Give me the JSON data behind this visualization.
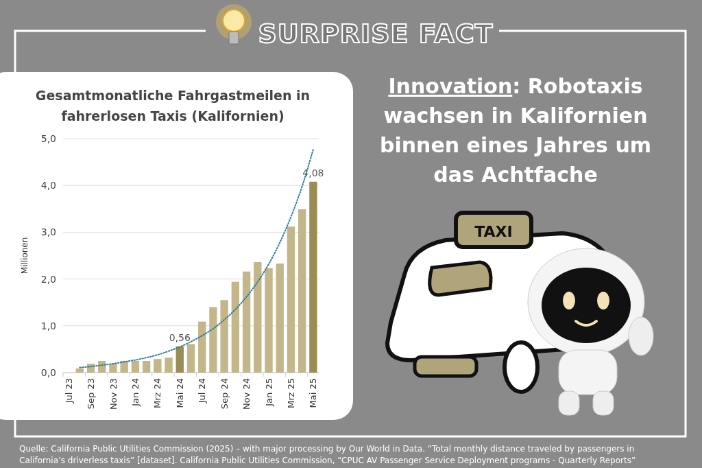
{
  "chart_data": {
    "type": "bar",
    "title": "Gesamtmonatliche Fahrgastmeilen in fahrerlosen Taxis (Kalifornien)",
    "ylabel": "Millionen",
    "categories": [
      "Jul 23",
      null,
      "Sep 23",
      null,
      "Nov 23",
      null,
      "Jan 24",
      null,
      "Mrz 24",
      null,
      "Mai 24",
      null,
      "Jul 24",
      null,
      "Sep 24",
      null,
      "Nov 24",
      null,
      "Jan 25",
      null,
      "Mrz 25",
      null,
      "Mai 25"
    ],
    "series": [
      {
        "colors": [
          "#c2b68a",
          "#c2b68a",
          "#c2b68a",
          "#c2b68a",
          "#c2b68a",
          "#c2b68a",
          "#c2b68a",
          "#c2b68a",
          "#c2b68a",
          "#c2b68a",
          "#9b8c55",
          "#c2b68a",
          "#c2b68a",
          "#c2b68a",
          "#c2b68a",
          "#c2b68a",
          "#c2b68a",
          "#c2b68a",
          "#c2b68a",
          "#c2b68a",
          "#c2b68a",
          "#c2b68a",
          "#9b8c55"
        ],
        "values": [
          0,
          0.09,
          0.19,
          0.25,
          0.19,
          0.25,
          0.25,
          0.25,
          0.29,
          0.32,
          0.56,
          0.61,
          1.09,
          1.4,
          1.55,
          1.94,
          2.16,
          2.36,
          2.23,
          2.33,
          3.12,
          3.49,
          4.08
        ],
        "value_labels": [
          null,
          null,
          null,
          null,
          null,
          null,
          null,
          null,
          null,
          null,
          "0,56",
          null,
          null,
          null,
          null,
          null,
          null,
          null,
          null,
          null,
          null,
          null,
          "4,08"
        ]
      },
      {
        "type": "line",
        "color": "#2f7f98",
        "line_style": "dotted",
        "values": [
          null,
          0.11,
          0.13,
          0.16,
          0.19,
          0.23,
          0.27,
          0.32,
          0.38,
          0.46,
          0.55,
          0.66,
          0.79,
          0.94,
          1.13,
          1.35,
          1.62,
          1.94,
          2.32,
          2.78,
          3.33,
          3.98,
          4.77
        ]
      }
    ],
    "ylim": [
      0,
      5
    ],
    "yticks": [
      {
        "value": 0,
        "label": "0,0"
      },
      {
        "value": 1,
        "label": "1,0"
      },
      {
        "value": 2,
        "label": "2,0"
      },
      {
        "value": 3,
        "label": "3,0"
      },
      {
        "value": 4,
        "label": "4,0"
      },
      {
        "value": 5,
        "label": "5,0"
      }
    ],
    "grid": "y",
    "annotations": [
      "SURPRISE FACT",
      "Innovation: Robotaxis wachsen in Kalifornien binnen eines Jahres um das Achtfache",
      "Quelle: California Public Utilities Commission (2025) – with major processing by Our World in Data. “Total monthly distance traveled by passengers in California’s driverless taxis” [dataset]. California Public Utilities Commission, “CPUC AV Passenger Service Deployment programs - Quarterly Reports”",
      "TAXI"
    ]
  }
}
